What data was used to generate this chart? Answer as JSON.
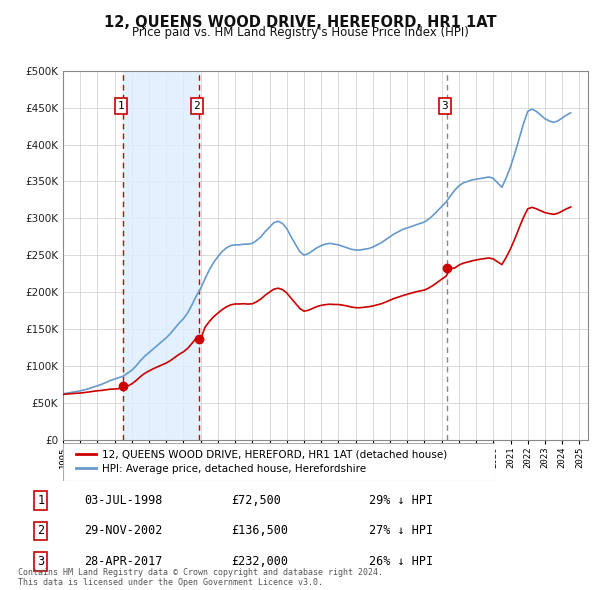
{
  "title": "12, QUEENS WOOD DRIVE, HEREFORD, HR1 1AT",
  "subtitle": "Price paid vs. HM Land Registry's House Price Index (HPI)",
  "xlim": [
    1995.0,
    2025.5
  ],
  "ylim": [
    0,
    500000
  ],
  "yticks": [
    0,
    50000,
    100000,
    150000,
    200000,
    250000,
    300000,
    350000,
    400000,
    450000,
    500000
  ],
  "ytick_labels": [
    "£0",
    "£50K",
    "£100K",
    "£150K",
    "£200K",
    "£250K",
    "£300K",
    "£350K",
    "£400K",
    "£450K",
    "£500K"
  ],
  "xticks": [
    1995,
    1996,
    1997,
    1998,
    1999,
    2000,
    2001,
    2002,
    2003,
    2004,
    2005,
    2006,
    2007,
    2008,
    2009,
    2010,
    2011,
    2012,
    2013,
    2014,
    2015,
    2016,
    2017,
    2018,
    2019,
    2020,
    2021,
    2022,
    2023,
    2024,
    2025
  ],
  "sale_color": "#cc0000",
  "hpi_color": "#6699cc",
  "background_color": "#ffffff",
  "grid_color": "#cccccc",
  "sale_points": [
    [
      1998.5,
      72500
    ],
    [
      2002.92,
      136500
    ],
    [
      2017.33,
      232000
    ]
  ],
  "sale_labels": [
    "1",
    "2",
    "3"
  ],
  "sale_label_dates": [
    "03-JUL-1998",
    "29-NOV-2002",
    "28-APR-2017"
  ],
  "sale_label_prices": [
    "£72,500",
    "£136,500",
    "£232,000"
  ],
  "sale_label_hpi": [
    "29% ↓ HPI",
    "27% ↓ HPI",
    "26% ↓ HPI"
  ],
  "vline_colors": [
    "#cc0000",
    "#cc0000",
    "#888888"
  ],
  "label_border_color": "#cc0000",
  "legend_sale_label": "12, QUEENS WOOD DRIVE, HEREFORD, HR1 1AT (detached house)",
  "legend_hpi_label": "HPI: Average price, detached house, Herefordshire",
  "footer_text": "Contains HM Land Registry data © Crown copyright and database right 2024.\nThis data is licensed under the Open Government Licence v3.0.",
  "shaded_region": [
    1998.5,
    2002.92
  ],
  "shaded_color": "#ddeeff"
}
